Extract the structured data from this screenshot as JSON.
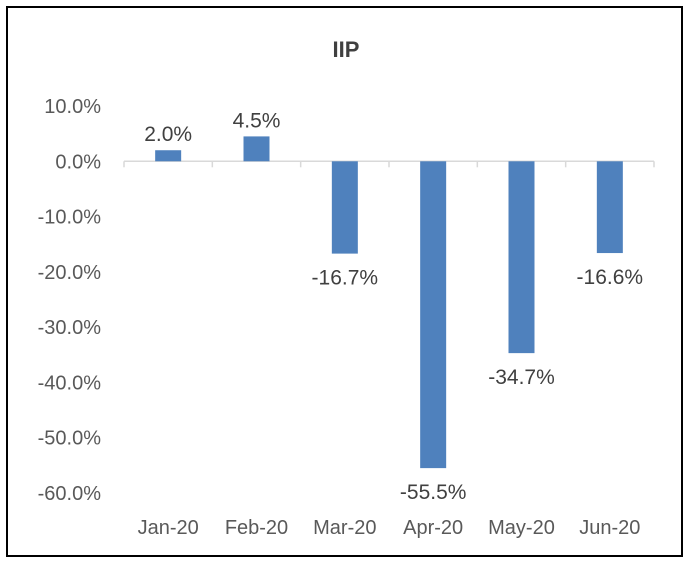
{
  "chart_data": {
    "type": "bar",
    "title": "IIP",
    "categories": [
      "Jan-20",
      "Feb-20",
      "Mar-20",
      "Apr-20",
      "May-20",
      "Jun-20"
    ],
    "values": [
      2.0,
      4.5,
      -16.7,
      -55.5,
      -34.7,
      -16.6
    ],
    "data_labels": [
      "2.0%",
      "4.5%",
      "-16.7%",
      "-55.5%",
      "-34.7%",
      "-16.6%"
    ],
    "y_ticks": [
      10,
      0,
      -10,
      -20,
      -30,
      -40,
      -50,
      -60
    ],
    "y_tick_labels": [
      "10.0%",
      "0.0%",
      "-10.0%",
      "-20.0%",
      "-30.0%",
      "-40.0%",
      "-50.0%",
      "-60.0%"
    ],
    "ylim": [
      -60,
      10
    ],
    "xlabel": "",
    "ylabel": "",
    "grid": false,
    "legend": "none",
    "bar_color": "#4F81BD",
    "axis_color": "#D9D9D9"
  }
}
